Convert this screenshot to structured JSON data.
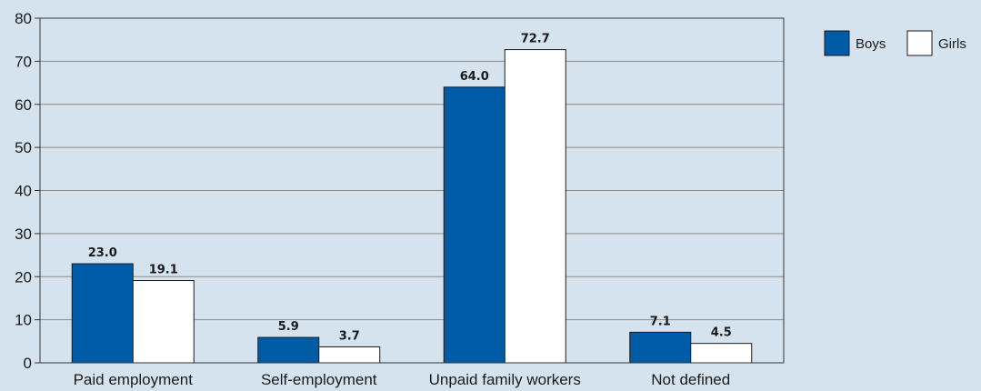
{
  "chart_data": {
    "type": "bar",
    "categories": [
      "Paid employment",
      "Self-employment",
      "Unpaid family workers",
      "Not defined"
    ],
    "series": [
      {
        "name": "Boys",
        "values": [
          23.0,
          5.9,
          64.0,
          7.1
        ],
        "color": "#005ba7"
      },
      {
        "name": "Girls",
        "values": [
          19.1,
          3.7,
          72.7,
          4.5
        ],
        "color": "#ffffff"
      }
    ],
    "ylim": [
      0,
      80
    ],
    "yticks": [
      0,
      10,
      20,
      30,
      40,
      50,
      60,
      70,
      80
    ],
    "grid": true,
    "legend_position": "top-right",
    "background_color": "#d5e3ef",
    "plot_background": "#d5e3ef",
    "title": "",
    "xlabel": "",
    "ylabel": ""
  }
}
